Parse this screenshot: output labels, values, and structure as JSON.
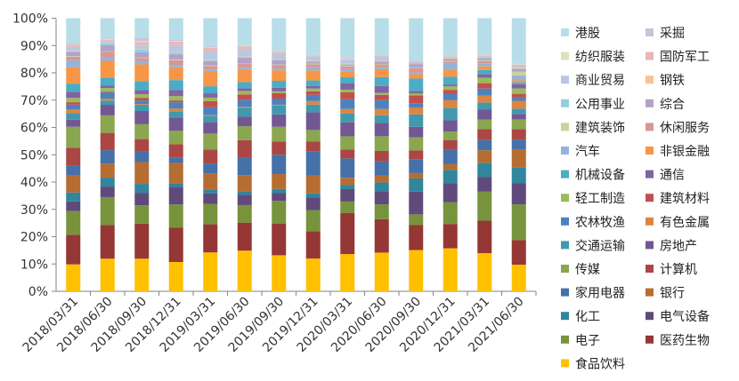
{
  "chart_data": {
    "type": "bar",
    "stacked": "percent",
    "title": "",
    "xlabel": "",
    "ylabel": "",
    "ylim": [
      0,
      100
    ],
    "yticks": [
      "0%",
      "10%",
      "20%",
      "30%",
      "40%",
      "50%",
      "60%",
      "70%",
      "80%",
      "90%",
      "100%"
    ],
    "legend_position": "right",
    "categories": [
      "2018/03/31",
      "2018/06/30",
      "2018/09/30",
      "2018/12/31",
      "2019/03/31",
      "2019/06/30",
      "2019/09/30",
      "2019/12/31",
      "2020/03/31",
      "2020/06/30",
      "2020/09/30",
      "2020/12/31",
      "2021/03/31",
      "2021/06/30"
    ],
    "series": [
      {
        "name": "食品饮料",
        "color": "#ffc000",
        "values": [
          10.0,
          12.1,
          12.1,
          10.8,
          14.4,
          15.1,
          13.4,
          12.1,
          13.8,
          14.4,
          15.4,
          16.1,
          14.1,
          9.9
        ]
      },
      {
        "name": "医药生物",
        "color": "#953735",
        "values": [
          11.0,
          12.4,
          13.0,
          12.7,
          10.4,
          10.4,
          11.7,
          10.1,
          15.3,
          12.4,
          9.4,
          9.1,
          12.0,
          9.1
        ]
      },
      {
        "name": "电子",
        "color": "#77933c",
        "values": [
          8.8,
          10.4,
          6.8,
          8.5,
          7.5,
          6.5,
          8.5,
          7.8,
          4.2,
          5.5,
          3.9,
          8.1,
          10.7,
          13.3
        ]
      },
      {
        "name": "电气设备",
        "color": "#604a7b",
        "values": [
          3.6,
          3.9,
          4.6,
          6.5,
          3.9,
          3.9,
          2.9,
          4.6,
          4.6,
          4.9,
          8.5,
          7.2,
          5.5,
          7.8
        ]
      },
      {
        "name": "化工",
        "color": "#31859c",
        "values": [
          3.3,
          3.3,
          3.3,
          1.3,
          1.3,
          1.3,
          1.6,
          1.6,
          1.6,
          3.3,
          4.9,
          4.9,
          5.2,
          5.9
        ]
      },
      {
        "name": "银行",
        "color": "#b66d31",
        "values": [
          6.5,
          5.2,
          8.1,
          7.5,
          6.2,
          5.9,
          5.5,
          6.5,
          2.6,
          2.6,
          2.0,
          2.3,
          4.6,
          6.8
        ]
      },
      {
        "name": "家用电器",
        "color": "#4571a8",
        "values": [
          3.6,
          5.0,
          3.9,
          2.0,
          3.6,
          6.5,
          7.2,
          9.1,
          7.2,
          5.2,
          5.2,
          5.2,
          3.9,
          3.6
        ]
      },
      {
        "name": "计算机",
        "color": "#aa4644",
        "values": [
          6.5,
          6.4,
          4.6,
          4.9,
          5.2,
          6.5,
          4.9,
          3.6,
          3.3,
          3.9,
          3.3,
          3.6,
          3.9,
          3.9
        ]
      },
      {
        "name": "传媒",
        "color": "#8aa64e",
        "values": [
          7.8,
          6.5,
          5.5,
          4.9,
          5.9,
          5.2,
          5.5,
          4.2,
          4.9,
          5.5,
          4.9,
          3.3,
          3.6,
          3.6
        ]
      },
      {
        "name": "房地产",
        "color": "#725893",
        "values": [
          2.6,
          3.9,
          4.9,
          4.9,
          4.2,
          3.6,
          4.6,
          6.5,
          5.2,
          4.9,
          3.9,
          4.2,
          3.6,
          2.0
        ]
      },
      {
        "name": "交通运输",
        "color": "#4199ad",
        "values": [
          2.4,
          1.6,
          2.3,
          2.3,
          2.3,
          3.3,
          3.3,
          2.9,
          3.3,
          2.9,
          4.6,
          4.6,
          2.6,
          2.0
        ]
      },
      {
        "name": "有色金属",
        "color": "#dc8542",
        "values": [
          1.5,
          0.7,
          0.3,
          1.0,
          0.3,
          0.3,
          0.3,
          1.3,
          1.6,
          2.3,
          2.6,
          2.9,
          2.6,
          2.9
        ]
      },
      {
        "name": "农林牧渔",
        "color": "#4f81bd",
        "values": [
          1.7,
          2.3,
          1.3,
          2.3,
          2.9,
          2.6,
          2.3,
          2.3,
          3.6,
          3.3,
          1.6,
          2.3,
          2.6,
          1.3
        ]
      },
      {
        "name": "建筑材料",
        "color": "#c0504d",
        "values": [
          0.9,
          0.3,
          1.0,
          0.7,
          2.3,
          2.0,
          2.0,
          1.3,
          2.6,
          2.0,
          2.9,
          1.6,
          2.0,
          1.3
        ]
      },
      {
        "name": "轻工制造",
        "color": "#9bbb59",
        "values": [
          1.6,
          1.3,
          1.3,
          1.6,
          1.3,
          1.3,
          0.7,
          1.0,
          1.0,
          0.7,
          0.7,
          1.3,
          2.0,
          2.0
        ]
      },
      {
        "name": "通信",
        "color": "#8064a2",
        "values": [
          2.3,
          1.0,
          1.6,
          2.3,
          1.6,
          1.0,
          1.3,
          1.0,
          2.3,
          2.6,
          1.0,
          0.7,
          1.3,
          1.6
        ]
      },
      {
        "name": "机械设备",
        "color": "#4bacc6",
        "values": [
          3.0,
          2.9,
          3.3,
          3.6,
          2.6,
          2.3,
          2.6,
          2.0,
          2.3,
          3.3,
          4.6,
          2.9,
          1.6,
          0.7
        ]
      },
      {
        "name": "非银金融",
        "color": "#f79646",
        "values": [
          6.1,
          6.2,
          6.2,
          4.7,
          5.3,
          4.6,
          3.9,
          3.7,
          2.0,
          3.0,
          1.6,
          2.6,
          1.3,
          0.7
        ]
      },
      {
        "name": "汽车",
        "color": "#95b3d7",
        "values": [
          2.6,
          1.3,
          1.3,
          0.9,
          0.9,
          0.7,
          0.7,
          1.3,
          1.1,
          0.7,
          0.7,
          2.3,
          1.0,
          1.6
        ]
      },
      {
        "name": "休闲服务",
        "color": "#d99694",
        "values": [
          1.3,
          2.0,
          1.0,
          1.7,
          1.3,
          1.4,
          1.3,
          1.0,
          0.9,
          1.0,
          1.6,
          0.7,
          1.0,
          0.3
        ]
      },
      {
        "name": "建筑装饰",
        "color": "#c3d69b",
        "values": [
          0.2,
          0.2,
          0.2,
          0.3,
          0.2,
          0.2,
          0.2,
          0.2,
          0.2,
          0.2,
          0.2,
          0.3,
          0.3,
          1.3
        ]
      },
      {
        "name": "综合",
        "color": "#b3a2c7",
        "values": [
          1.6,
          2.3,
          2.0,
          1.8,
          1.6,
          2.2,
          1.6,
          0.7,
          0.4,
          0.9,
          1.3,
          0.7,
          0.7,
          1.0
        ]
      },
      {
        "name": "公用事业",
        "color": "#93cddd",
        "values": [
          0.2,
          0.7,
          1.0,
          0.7,
          0.3,
          0.2,
          0.2,
          0.3,
          0.2,
          0.2,
          0.2,
          0.2,
          0.2,
          0.3
        ]
      },
      {
        "name": "钢铁",
        "color": "#fac090",
        "values": [
          0.2,
          0.2,
          0.2,
          0.2,
          0.2,
          0.2,
          0.2,
          0.2,
          0.2,
          0.2,
          0.2,
          0.2,
          0.2,
          0.3
        ]
      },
      {
        "name": "商业贸易",
        "color": "#b9c8e2",
        "values": [
          1.5,
          0.7,
          1.3,
          2.6,
          2.9,
          2.6,
          2.0,
          1.6,
          1.5,
          1.6,
          0.3,
          0.3,
          0.3,
          0.3
        ]
      },
      {
        "name": "国防军工",
        "color": "#e6b9b8",
        "values": [
          0.8,
          0.3,
          1.3,
          1.3,
          1.6,
          1.1,
          0.7,
          0.3,
          0.3,
          0.3,
          0.3,
          0.3,
          0.3,
          0.7
        ]
      },
      {
        "name": "纺织服装",
        "color": "#d7e4bd",
        "values": [
          0.2,
          0.3,
          0.3,
          0.2,
          0.2,
          0.2,
          0.2,
          0.2,
          0.2,
          0.2,
          0.2,
          0.3,
          0.3,
          0.2
        ]
      },
      {
        "name": "采掘",
        "color": "#ccc1da",
        "values": [
          0.5,
          0.3,
          1.1,
          0.4,
          0.3,
          0.3,
          0.3,
          0.3,
          0.3,
          0.3,
          0.3,
          0.3,
          0.3,
          0.2
        ]
      },
      {
        "name": "港股",
        "color": "#b7dee8",
        "values": [
          9.1,
          7.5,
          7.4,
          8.0,
          10.4,
          10.0,
          12.0,
          13.2,
          14.6,
          13.3,
          15.6,
          13.7,
          13.2,
          16.9
        ]
      }
    ]
  }
}
